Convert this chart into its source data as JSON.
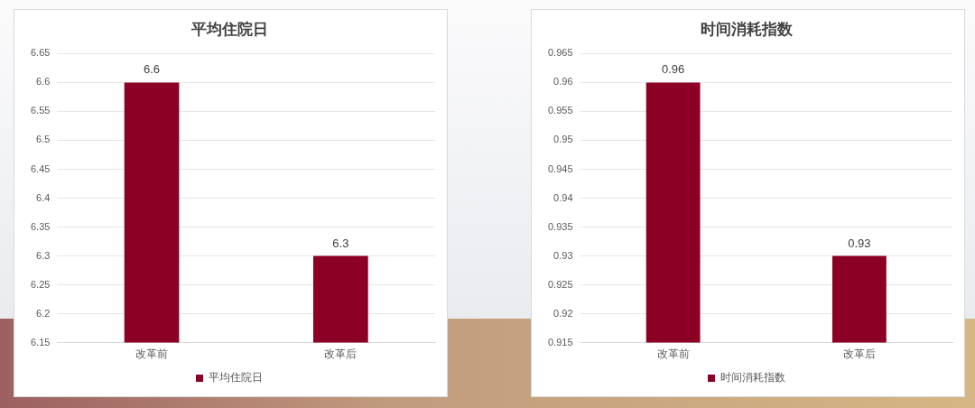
{
  "chart_data": [
    {
      "type": "bar",
      "title": "平均住院日",
      "categories": [
        "改革前",
        "改革后"
      ],
      "series": [
        {
          "name": "平均住院日",
          "color": "#8b0024",
          "values": [
            6.6,
            6.3
          ]
        }
      ],
      "ylim": [
        6.15,
        6.65
      ],
      "yticks": [
        6.15,
        6.2,
        6.25,
        6.3,
        6.35,
        6.4,
        6.45,
        6.5,
        6.55,
        6.6,
        6.65
      ],
      "grid": "y",
      "legend": "bottom",
      "data_labels": true
    },
    {
      "type": "bar",
      "title": "时间消耗指数",
      "categories": [
        "改革前",
        "改革后"
      ],
      "series": [
        {
          "name": "时间消耗指数",
          "color": "#8b0024",
          "values": [
            0.96,
            0.93
          ]
        }
      ],
      "ylim": [
        0.915,
        0.965
      ],
      "yticks": [
        0.915,
        0.92,
        0.925,
        0.93,
        0.935,
        0.94,
        0.945,
        0.95,
        0.955,
        0.96,
        0.965
      ],
      "grid": "y",
      "legend": "bottom",
      "data_labels": true
    }
  ]
}
